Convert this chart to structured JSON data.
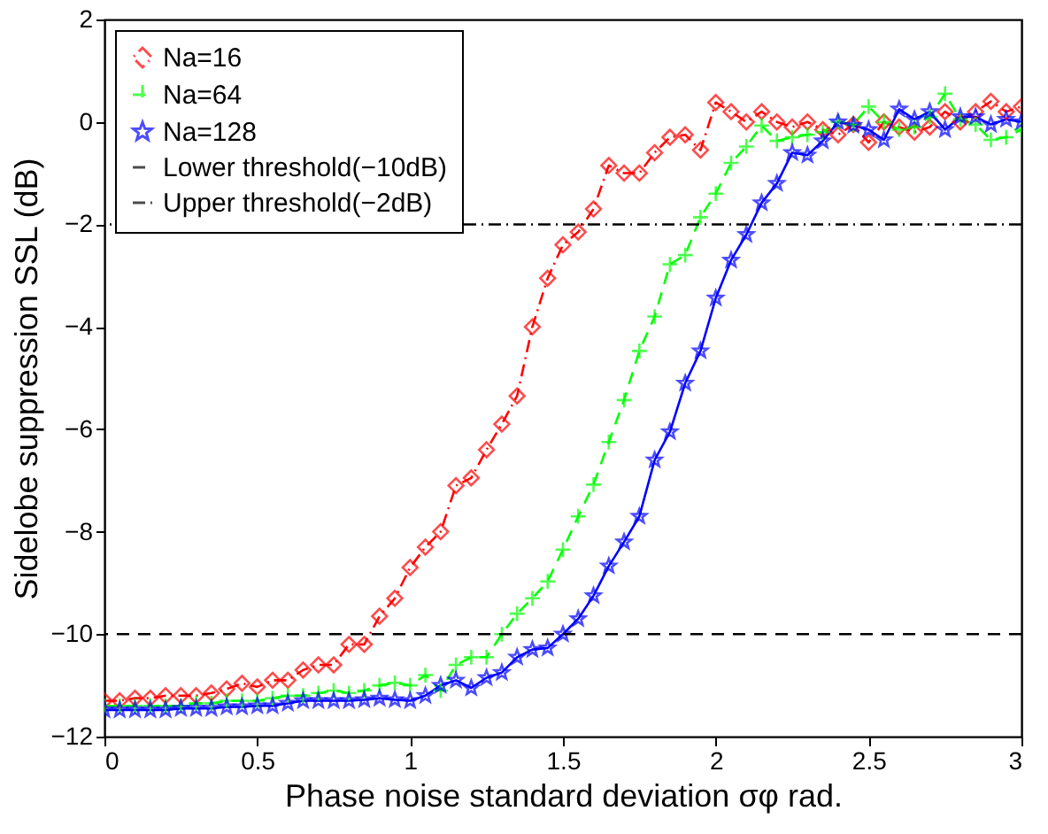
{
  "chart_data": {
    "type": "line",
    "xlabel": "Phase noise standard deviation σφ rad.",
    "ylabel": "Sidelobe suppression SSL (dB)",
    "x": [
      0,
      0.05,
      0.1,
      0.15,
      0.2,
      0.25,
      0.3,
      0.35,
      0.4,
      0.45,
      0.5,
      0.55,
      0.6,
      0.65,
      0.7,
      0.75,
      0.8,
      0.85,
      0.9,
      0.95,
      1.0,
      1.05,
      1.1,
      1.15,
      1.2,
      1.25,
      1.3,
      1.35,
      1.4,
      1.45,
      1.5,
      1.55,
      1.6,
      1.65,
      1.7,
      1.75,
      1.8,
      1.85,
      1.9,
      1.95,
      2.0,
      2.05,
      2.1,
      2.15,
      2.2,
      2.25,
      2.3,
      2.35,
      2.4,
      2.45,
      2.5,
      2.55,
      2.6,
      2.65,
      2.7,
      2.75,
      2.8,
      2.85,
      2.9,
      2.95,
      3.0
    ],
    "series": [
      {
        "name": "Na=16",
        "color": "#ff0000",
        "marker": "diamond",
        "line_style": "dashdot",
        "values": [
          -11.3,
          -11.3,
          -11.25,
          -11.25,
          -11.2,
          -11.2,
          -11.2,
          -11.15,
          -11.07,
          -10.96,
          -11.03,
          -10.9,
          -10.9,
          -10.7,
          -10.6,
          -10.6,
          -10.2,
          -10.2,
          -9.65,
          -9.3,
          -8.7,
          -8.3,
          -8.0,
          -7.1,
          -6.95,
          -6.4,
          -5.9,
          -5.35,
          -4.0,
          -3.05,
          -2.4,
          -2.15,
          -1.7,
          -0.85,
          -1.0,
          -1.0,
          -0.6,
          -0.3,
          -0.25,
          -0.55,
          0.38,
          0.2,
          0.0,
          0.2,
          0.0,
          -0.1,
          0.0,
          -0.15,
          -0.25,
          -0.05,
          -0.4,
          0.0,
          -0.1,
          -0.2,
          -0.1,
          0.2,
          0.0,
          0.2,
          0.4,
          0.2,
          0.3
        ]
      },
      {
        "name": "Na=64",
        "color": "#00ff00",
        "marker": "cross",
        "line_style": "dashed",
        "values": [
          -11.4,
          -11.4,
          -11.4,
          -11.4,
          -11.4,
          -11.4,
          -11.35,
          -11.35,
          -11.3,
          -11.3,
          -11.3,
          -11.25,
          -11.2,
          -11.2,
          -11.15,
          -11.1,
          -11.15,
          -11.1,
          -11.0,
          -10.95,
          -11.0,
          -10.8,
          -11.1,
          -10.6,
          -10.45,
          -10.45,
          -10.0,
          -9.6,
          -9.3,
          -8.97,
          -8.35,
          -7.7,
          -7.08,
          -6.25,
          -5.43,
          -4.47,
          -3.8,
          -2.78,
          -2.6,
          -1.86,
          -1.4,
          -0.8,
          -0.48,
          -0.07,
          -0.37,
          -0.3,
          -0.25,
          -0.2,
          0.0,
          -0.05,
          0.3,
          0.0,
          -0.15,
          -0.1,
          0.1,
          0.55,
          0.05,
          -0.05,
          -0.35,
          -0.3,
          -0.15
        ]
      },
      {
        "name": "Na=128",
        "color": "#0000ff",
        "marker": "star",
        "line_style": "solid",
        "values": [
          -11.48,
          -11.48,
          -11.48,
          -11.48,
          -11.48,
          -11.45,
          -11.45,
          -11.45,
          -11.42,
          -11.42,
          -11.4,
          -11.4,
          -11.35,
          -11.3,
          -11.3,
          -11.3,
          -11.3,
          -11.28,
          -11.25,
          -11.28,
          -11.3,
          -11.2,
          -11.0,
          -10.9,
          -11.05,
          -10.85,
          -10.75,
          -10.45,
          -10.3,
          -10.27,
          -10.0,
          -9.7,
          -9.25,
          -8.67,
          -8.2,
          -7.7,
          -6.6,
          -6.05,
          -5.1,
          -4.47,
          -3.44,
          -2.7,
          -2.2,
          -1.58,
          -1.2,
          -0.6,
          -0.65,
          -0.37,
          0.0,
          -0.07,
          -0.15,
          -0.35,
          0.25,
          0.05,
          0.2,
          -0.15,
          0.1,
          0.1,
          -0.05,
          0.05,
          0.0
        ]
      }
    ],
    "ref_lines": [
      {
        "axis": "y",
        "value": -10,
        "label": "Lower threshold(−10dB)",
        "color": "#000000",
        "line_style": "dashed"
      },
      {
        "axis": "y",
        "value": -2,
        "label": "Upper threshold(−2dB)",
        "color": "#000000",
        "line_style": "dashdot"
      }
    ],
    "xlim": [
      0,
      3
    ],
    "xticks": [
      0,
      0.5,
      1,
      1.5,
      2,
      2.5,
      3
    ],
    "ylim": [
      -12,
      2
    ],
    "yticks": [
      -12,
      -10,
      -8,
      -6,
      -4,
      -2,
      0,
      2
    ],
    "grid": false,
    "legend": "top left"
  }
}
